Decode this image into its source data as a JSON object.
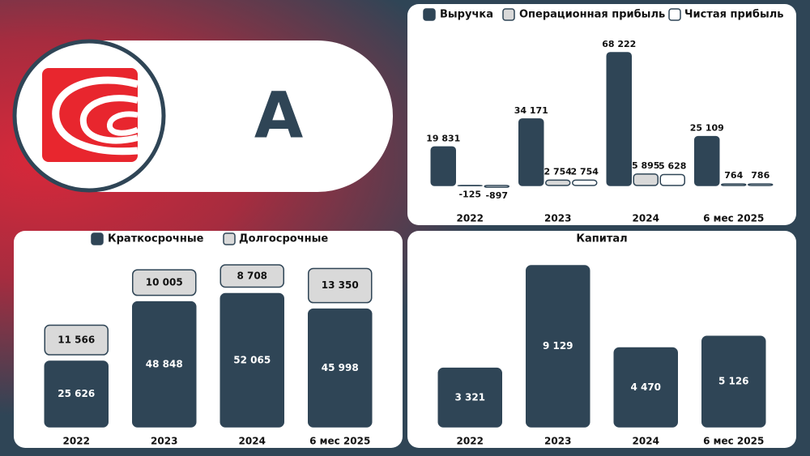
{
  "header": {
    "ticker": "A"
  },
  "chart_data": [
    {
      "type": "grouped_bar",
      "categories": [
        "2022",
        "2023",
        "2024",
        "6 мес 2025"
      ],
      "legend": "top",
      "series": [
        {
          "name": "Выручка",
          "color": "#2f4556",
          "values": [
            19831,
            34171,
            68222,
            25109
          ],
          "value_labels": [
            "19 831",
            "34 171",
            "68 222",
            "25 109"
          ]
        },
        {
          "name": "Операционная прибыль",
          "color": "#d9d9d9",
          "values": [
            -125,
            2754,
            5895,
            764
          ],
          "value_labels": [
            "-125",
            "2 754",
            "5 895",
            "764"
          ]
        },
        {
          "name": "Чистая прибыль",
          "color": "#ffffff",
          "values": [
            -897,
            2754,
            5628,
            786
          ],
          "value_labels": [
            "-897",
            "2 754",
            "5 628",
            "786"
          ]
        }
      ]
    },
    {
      "type": "stacked_bar",
      "categories": [
        "2022",
        "2023",
        "2024",
        "6 мес 2025"
      ],
      "legend": "top",
      "series": [
        {
          "name": "Краткосрочные",
          "color": "#2f4556",
          "values": [
            25626,
            48848,
            52065,
            45998
          ],
          "value_labels": [
            "25 626",
            "48 848",
            "52 065",
            "45 998"
          ]
        },
        {
          "name": "Долгосрочные",
          "color": "#d9d9d9",
          "values": [
            11566,
            10005,
            8708,
            13350
          ],
          "value_labels": [
            "11 566",
            "10 005",
            "8 708",
            "13 350"
          ]
        }
      ]
    },
    {
      "type": "bar",
      "title": "Капитал",
      "color": "#2f4556",
      "categories": [
        "2022",
        "2023",
        "2024",
        "6 мес 2025"
      ],
      "values": [
        3321,
        9129,
        4470,
        5126
      ],
      "value_labels": [
        "3 321",
        "9 129",
        "4 470",
        "5 126"
      ]
    }
  ]
}
